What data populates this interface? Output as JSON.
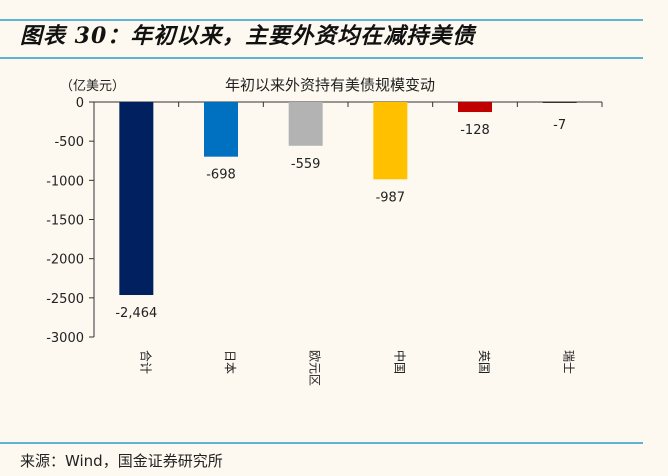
{
  "header": {
    "title": "图表 30：年初以来，主要外资均在减持美债"
  },
  "footer": {
    "source": "来源：Wind，国金证券研究所"
  },
  "chart_data": {
    "type": "bar",
    "title": "年初以来外资持有美债规模变动",
    "ylabel": "（亿美元）",
    "xlabel": "",
    "categories": [
      "合计",
      "日本",
      "欧元区",
      "中国",
      "英国",
      "瑞士"
    ],
    "values": [
      -2464,
      -698,
      -559,
      -987,
      -128,
      -7
    ],
    "data_labels": [
      "-2,464",
      "-698",
      "-559",
      "-987",
      "-128",
      "-7"
    ],
    "colors": [
      "#002060",
      "#0070c0",
      "#b3b3b3",
      "#ffc000",
      "#c00000",
      "#000000"
    ],
    "ylim": [
      -3000,
      0
    ],
    "yticks": [
      0,
      -500,
      -1000,
      -1500,
      -2000,
      -2500,
      -3000
    ],
    "grid": false,
    "legend": "none"
  }
}
